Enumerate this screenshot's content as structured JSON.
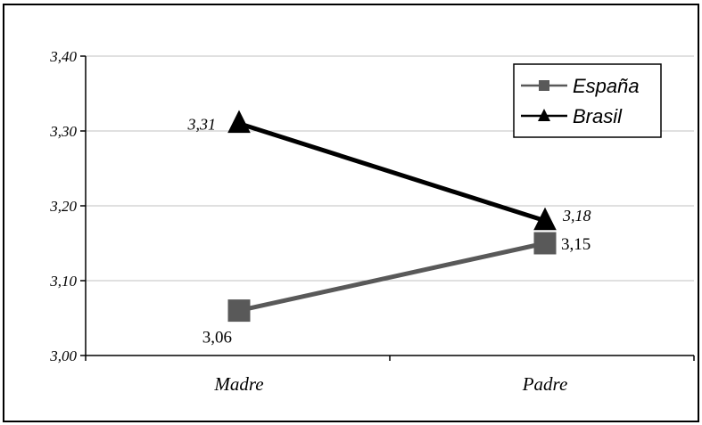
{
  "chart_data": {
    "type": "line",
    "categories": [
      "Madre",
      "Padre"
    ],
    "series": [
      {
        "name": "España",
        "values": [
          3.06,
          3.15
        ],
        "labels": [
          "3,06",
          "3,15"
        ],
        "color": "#595959",
        "marker": "square",
        "label_italic": false
      },
      {
        "name": "Brasil",
        "values": [
          3.31,
          3.18
        ],
        "labels": [
          "3,31",
          "3,18"
        ],
        "color": "#000000",
        "marker": "triangle",
        "label_italic": true
      }
    ],
    "yticks": [
      "3,00",
      "3,10",
      "3,20",
      "3,30",
      "3,40"
    ],
    "ylim": [
      3.0,
      3.4
    ],
    "title": "",
    "xlabel": "",
    "ylabel": "",
    "grid": true,
    "legend_position": "top-right"
  }
}
